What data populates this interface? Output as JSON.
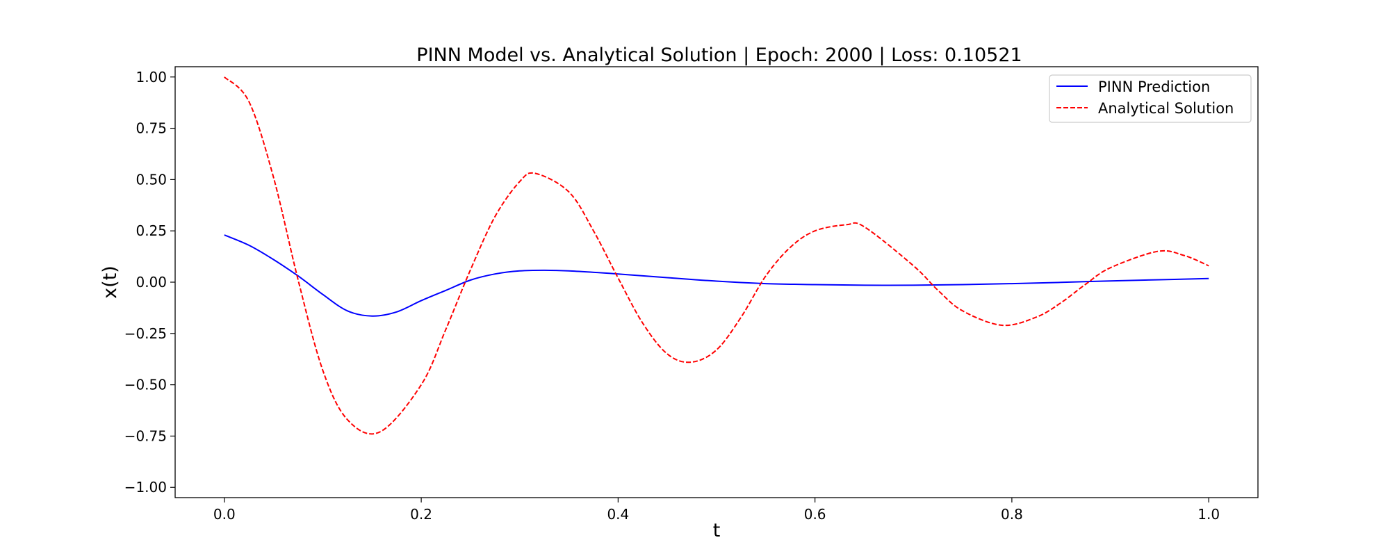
{
  "chart_data": {
    "type": "line",
    "title": "PINN Model vs. Analytical Solution | Epoch: 2000 | Loss: 0.10521",
    "xlabel": "t",
    "ylabel": "x(t)",
    "xlim": [
      -0.05,
      1.05
    ],
    "ylim": [
      -1.05,
      1.05
    ],
    "x_ticks": [
      0.0,
      0.2,
      0.4,
      0.6,
      0.8,
      1.0
    ],
    "x_tick_labels": [
      "0.0",
      "0.2",
      "0.4",
      "0.6",
      "0.8",
      "1.0"
    ],
    "y_ticks": [
      1.0,
      0.75,
      0.5,
      0.25,
      0.0,
      -0.25,
      -0.5,
      -0.75,
      -1.0
    ],
    "y_tick_labels": [
      "1.00",
      "0.75",
      "0.50",
      "0.25",
      "0.00",
      "−0.25",
      "−0.50",
      "−0.75",
      "−1.00"
    ],
    "grid": false,
    "legend_position": "top-right",
    "series": [
      {
        "name": "PINN Prediction",
        "color": "#0000ff",
        "style": "solid",
        "x": [
          0.0,
          0.025,
          0.05,
          0.075,
          0.1,
          0.125,
          0.15,
          0.175,
          0.2,
          0.225,
          0.25,
          0.275,
          0.3,
          0.325,
          0.35,
          0.4,
          0.45,
          0.5,
          0.55,
          0.6,
          0.65,
          0.7,
          0.75,
          0.8,
          0.85,
          0.9,
          0.95,
          1.0
        ],
        "y": [
          0.23,
          0.18,
          0.11,
          0.03,
          -0.06,
          -0.14,
          -0.165,
          -0.145,
          -0.09,
          -0.04,
          0.01,
          0.04,
          0.055,
          0.058,
          0.055,
          0.04,
          0.022,
          0.005,
          -0.007,
          -0.012,
          -0.015,
          -0.015,
          -0.012,
          -0.007,
          -0.001,
          0.006,
          0.012,
          0.018
        ]
      },
      {
        "name": "Analytical Solution",
        "color": "#ff0000",
        "style": "dashed",
        "x": [
          0.0,
          0.025,
          0.05,
          0.075,
          0.1,
          0.125,
          0.158,
          0.2,
          0.225,
          0.25,
          0.275,
          0.3,
          0.316,
          0.35,
          0.375,
          0.4,
          0.425,
          0.45,
          0.474,
          0.5,
          0.525,
          0.55,
          0.575,
          0.6,
          0.632,
          0.65,
          0.7,
          0.725,
          0.75,
          0.79,
          0.825,
          0.85,
          0.875,
          0.9,
          0.948,
          0.975,
          1.0
        ],
        "y": [
          1.0,
          0.88,
          0.51,
          0.01,
          -0.43,
          -0.67,
          -0.73,
          -0.5,
          -0.23,
          0.06,
          0.32,
          0.49,
          0.53,
          0.44,
          0.25,
          0.02,
          -0.2,
          -0.35,
          -0.39,
          -0.33,
          -0.17,
          0.03,
          0.17,
          0.25,
          0.28,
          0.27,
          0.08,
          -0.04,
          -0.14,
          -0.21,
          -0.17,
          -0.1,
          -0.01,
          0.07,
          0.15,
          0.13,
          0.08
        ]
      }
    ]
  }
}
